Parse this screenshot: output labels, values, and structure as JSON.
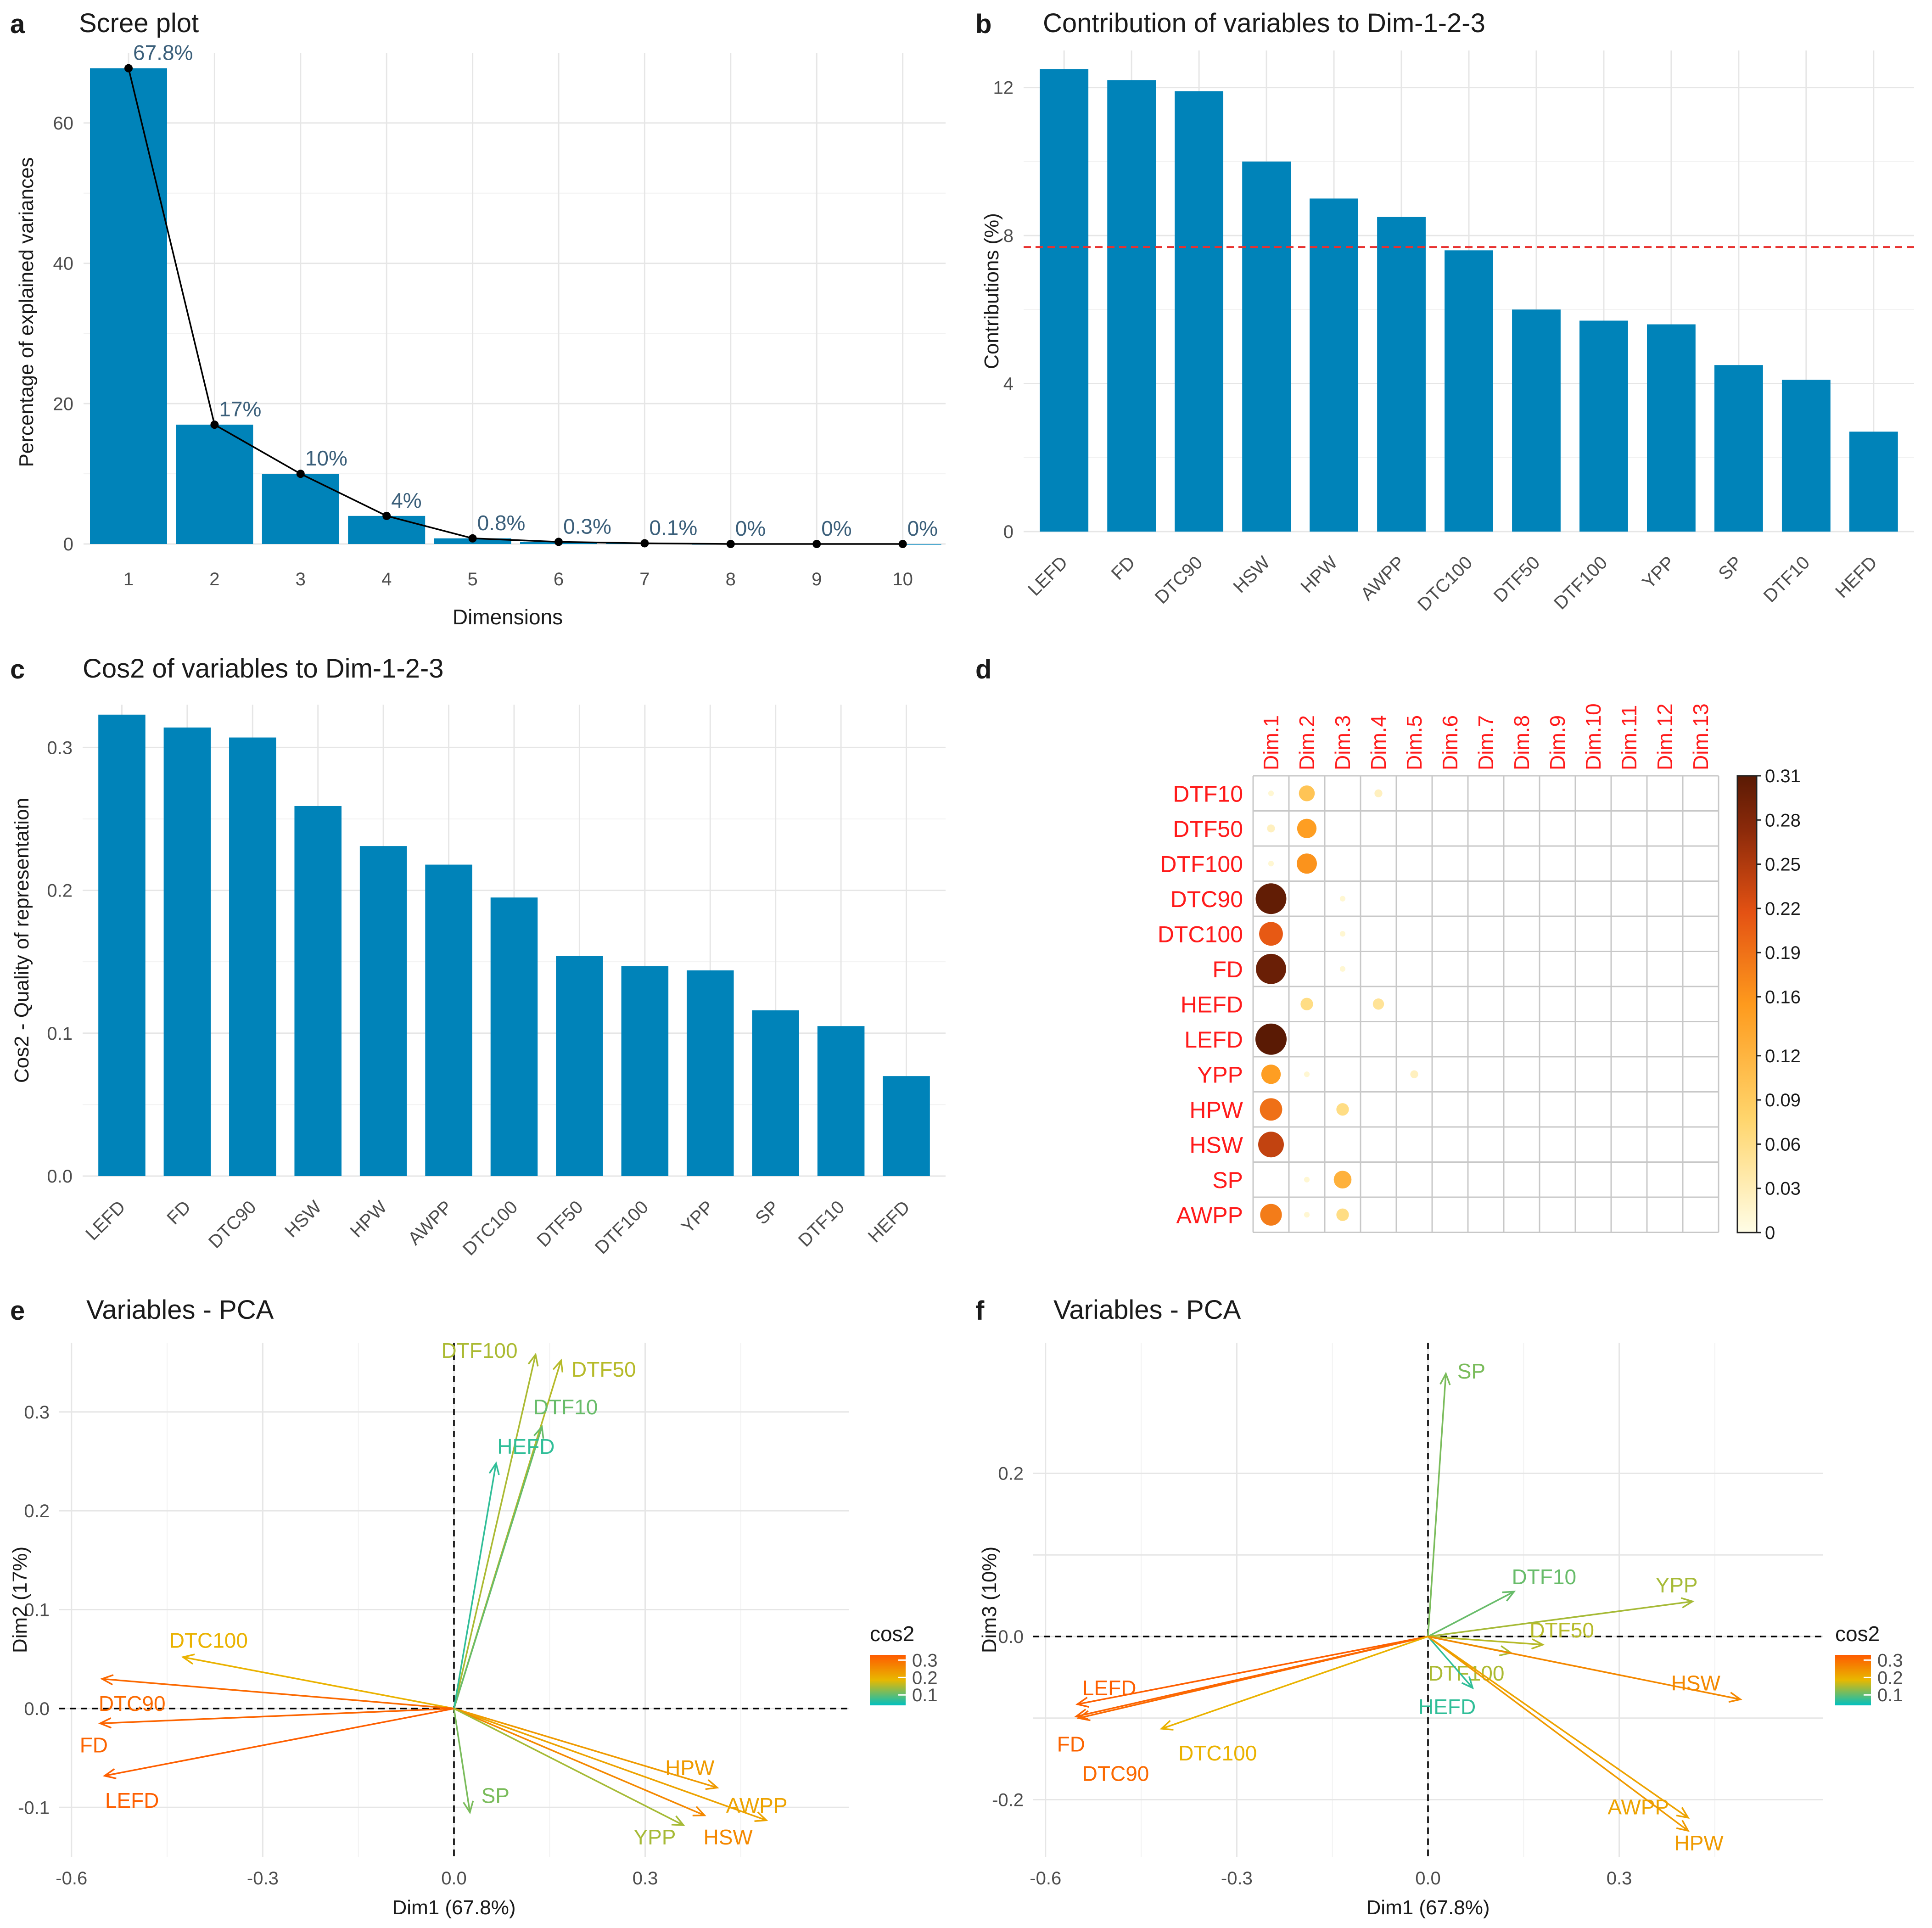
{
  "colors": {
    "bar": "#0083b9",
    "gridline": "#e6e6e6",
    "axis_text": "#4d4d4d",
    "title": "#1a1a1a",
    "red_label": "#ff1a1a",
    "ref_line": "#e8312f",
    "gradient_cos2": [
      "#00c0c0",
      "#e8b800",
      "#ff5a00"
    ],
    "gradient_corr": [
      "#fffde6",
      "#ffd56c",
      "#fe9a1d",
      "#e45213",
      "#8c2a0a",
      "#5a1a04"
    ]
  },
  "panels": {
    "a": {
      "letter": "a",
      "title": "Scree plot"
    },
    "b": {
      "letter": "b",
      "title": "Contribution of variables to Dim-1-2-3"
    },
    "c": {
      "letter": "c",
      "title": "Cos2 of variables to Dim-1-2-3"
    },
    "d": {
      "letter": "d"
    },
    "e": {
      "letter": "e",
      "title": "Variables - PCA"
    },
    "f": {
      "letter": "f",
      "title": "Variables - PCA"
    }
  },
  "chart_data": [
    {
      "id": "a",
      "type": "bar",
      "title": "Scree plot",
      "xlabel": "Dimensions",
      "ylabel": "Percentage of explained variances",
      "categories": [
        "1",
        "2",
        "3",
        "4",
        "5",
        "6",
        "7",
        "8",
        "9",
        "10"
      ],
      "values": [
        67.8,
        17,
        10,
        4,
        0.8,
        0.3,
        0.1,
        0,
        0,
        0
      ],
      "labels": [
        "67.8%",
        "17%",
        "10%",
        "4%",
        "0.8%",
        "0.3%",
        "0.1%",
        "0%",
        "0%",
        "0%"
      ],
      "line_overlay": true,
      "ylim": [
        0,
        70
      ],
      "yticks": [
        0,
        20,
        40,
        60
      ]
    },
    {
      "id": "b",
      "type": "bar",
      "title": "Contribution of variables to Dim-1-2-3",
      "ylabel": "Contributions (%)",
      "categories": [
        "LEFD",
        "FD",
        "DTC90",
        "HSW",
        "HPW",
        "AWPP",
        "DTC100",
        "DTF50",
        "DTF100",
        "YPP",
        "SP",
        "DTF10",
        "HEFD"
      ],
      "values": [
        12.5,
        12.2,
        11.9,
        10.0,
        9.0,
        8.5,
        7.6,
        6.0,
        5.7,
        5.6,
        4.5,
        4.1,
        2.7
      ],
      "reference_line": 7.69,
      "ylim": [
        0,
        13
      ],
      "yticks": [
        0,
        4,
        8,
        12
      ]
    },
    {
      "id": "c",
      "type": "bar",
      "title": "Cos2 of variables to Dim-1-2-3",
      "ylabel": "Cos2 - Quality of representation",
      "categories": [
        "LEFD",
        "FD",
        "DTC90",
        "HSW",
        "HPW",
        "AWPP",
        "DTC100",
        "DTF50",
        "DTF100",
        "YPP",
        "SP",
        "DTF10",
        "HEFD"
      ],
      "values": [
        0.323,
        0.314,
        0.307,
        0.259,
        0.231,
        0.218,
        0.195,
        0.154,
        0.147,
        0.144,
        0.116,
        0.105,
        0.07
      ],
      "ylim": [
        0,
        0.33
      ],
      "yticks": [
        0.0,
        0.1,
        0.2,
        0.3
      ],
      "ytick_labels": [
        "0.0",
        "0.1",
        "0.2",
        "0.3"
      ]
    },
    {
      "id": "d",
      "type": "heatmap",
      "columns": [
        "Dim.1",
        "Dim.2",
        "Dim.3",
        "Dim.4",
        "Dim.5",
        "Dim.6",
        "Dim.7",
        "Dim.8",
        "Dim.9",
        "Dim.10",
        "Dim.11",
        "Dim.12",
        "Dim.13"
      ],
      "rows": [
        "DTF10",
        "DTF50",
        "DTF100",
        "DTC90",
        "DTC100",
        "FD",
        "HEFD",
        "LEFD",
        "YPP",
        "HPW",
        "HSW",
        "SP",
        "AWPP"
      ],
      "values": [
        [
          0.01,
          0.08,
          0.0,
          0.02,
          0.0,
          0.0,
          0.0,
          0.0,
          0.0,
          0.0,
          0.0,
          0.0,
          0.0
        ],
        [
          0.02,
          0.12,
          0.0,
          0.0,
          0.0,
          0.0,
          0.0,
          0.0,
          0.0,
          0.0,
          0.0,
          0.0,
          0.0
        ],
        [
          0.01,
          0.13,
          0.0,
          0.0,
          0.0,
          0.0,
          0.0,
          0.0,
          0.0,
          0.0,
          0.0,
          0.0,
          0.0
        ],
        [
          0.3,
          0.0,
          0.01,
          0.0,
          0.0,
          0.0,
          0.0,
          0.0,
          0.0,
          0.0,
          0.0,
          0.0,
          0.0
        ],
        [
          0.18,
          0.0,
          0.01,
          0.0,
          0.0,
          0.0,
          0.0,
          0.0,
          0.0,
          0.0,
          0.0,
          0.0,
          0.0
        ],
        [
          0.29,
          0.0,
          0.01,
          0.0,
          0.0,
          0.0,
          0.0,
          0.0,
          0.0,
          0.0,
          0.0,
          0.0,
          0.0
        ],
        [
          0.0,
          0.05,
          0.0,
          0.04,
          0.0,
          0.0,
          0.0,
          0.0,
          0.0,
          0.0,
          0.0,
          0.0,
          0.0
        ],
        [
          0.31,
          0.0,
          0.0,
          0.0,
          0.0,
          0.0,
          0.0,
          0.0,
          0.0,
          0.0,
          0.0,
          0.0,
          0.0
        ],
        [
          0.12,
          0.01,
          0.0,
          0.0,
          0.02,
          0.0,
          0.0,
          0.0,
          0.0,
          0.0,
          0.0,
          0.0,
          0.0
        ],
        [
          0.16,
          0.0,
          0.05,
          0.0,
          0.0,
          0.0,
          0.0,
          0.0,
          0.0,
          0.0,
          0.0,
          0.0,
          0.0
        ],
        [
          0.21,
          0.0,
          0.0,
          0.0,
          0.0,
          0.0,
          0.0,
          0.0,
          0.0,
          0.0,
          0.0,
          0.0,
          0.0
        ],
        [
          0.0,
          0.01,
          0.1,
          0.0,
          0.0,
          0.0,
          0.0,
          0.0,
          0.0,
          0.0,
          0.0,
          0.0,
          0.0
        ],
        [
          0.15,
          0.01,
          0.05,
          0.0,
          0.0,
          0.0,
          0.0,
          0.0,
          0.0,
          0.0,
          0.0,
          0.0,
          0.0
        ]
      ],
      "legend_ticks": [
        0,
        0.03,
        0.06,
        0.09,
        0.12,
        0.16,
        0.19,
        0.22,
        0.25,
        0.28,
        0.31
      ],
      "legend_tick_labels": [
        "0",
        "0.03",
        "0.06",
        "0.09",
        "0.12",
        "0.16",
        "0.19",
        "0.22",
        "0.25",
        "0.28",
        "0.31"
      ],
      "legend_range": [
        0,
        0.31
      ]
    },
    {
      "id": "e",
      "type": "scatter",
      "title": "Variables - PCA",
      "xlabel": "Dim1 (67.8%)",
      "ylabel": "Dim2 (17%)",
      "xlim": [
        -0.62,
        0.62
      ],
      "ylim": [
        -0.15,
        0.37
      ],
      "xticks": [
        -0.6,
        -0.3,
        0.0,
        0.3
      ],
      "xtick_labels": [
        "-0.6",
        "-0.3",
        "0.0",
        "0.3"
      ],
      "yticks": [
        -0.1,
        0.0,
        0.1,
        0.2,
        0.3
      ],
      "ytick_labels": [
        "-0.1",
        "0.0",
        "0.1",
        "0.2",
        "0.3"
      ],
      "legend_title": "cos2",
      "legend_ticks": [
        0.1,
        0.2,
        0.3
      ],
      "legend_tick_labels": [
        "0.1",
        "0.2",
        "0.3"
      ],
      "legend_range": [
        0.04,
        0.33
      ],
      "arrows": [
        {
          "name": "DTF100",
          "x": 0.128,
          "y": 0.358,
          "cos2": 0.147,
          "lx": 0.04,
          "ly": 0.362
        },
        {
          "name": "DTF50",
          "x": 0.168,
          "y": 0.352,
          "cos2": 0.154,
          "lx": 0.235,
          "ly": 0.343
        },
        {
          "name": "DTF10",
          "x": 0.138,
          "y": 0.285,
          "cos2": 0.105,
          "lx": 0.175,
          "ly": 0.305
        },
        {
          "name": "HEFD",
          "x": 0.066,
          "y": 0.248,
          "cos2": 0.07,
          "lx": 0.113,
          "ly": 0.265
        },
        {
          "name": "DTC100",
          "x": -0.425,
          "y": 0.052,
          "cos2": 0.195,
          "lx": -0.385,
          "ly": 0.069
        },
        {
          "name": "DTC90",
          "x": -0.552,
          "y": 0.03,
          "cos2": 0.307,
          "lx": -0.505,
          "ly": 0.005
        },
        {
          "name": "FD",
          "x": -0.555,
          "y": -0.015,
          "cos2": 0.314,
          "lx": -0.565,
          "ly": -0.037
        },
        {
          "name": "LEFD",
          "x": -0.548,
          "y": -0.068,
          "cos2": 0.323,
          "lx": -0.505,
          "ly": -0.093
        },
        {
          "name": "SP",
          "x": 0.025,
          "y": -0.105,
          "cos2": 0.116,
          "lx": 0.065,
          "ly": -0.088
        },
        {
          "name": "HPW",
          "x": 0.413,
          "y": -0.08,
          "cos2": 0.231,
          "lx": 0.37,
          "ly": -0.06
        },
        {
          "name": "AWPP",
          "x": 0.49,
          "y": -0.113,
          "cos2": 0.218,
          "lx": 0.475,
          "ly": -0.098
        },
        {
          "name": "HSW",
          "x": 0.393,
          "y": -0.108,
          "cos2": 0.259,
          "lx": 0.43,
          "ly": -0.13
        },
        {
          "name": "YPP",
          "x": 0.36,
          "y": -0.118,
          "cos2": 0.144,
          "lx": 0.315,
          "ly": -0.13
        }
      ]
    },
    {
      "id": "f",
      "type": "scatter",
      "title": "Variables - PCA",
      "xlabel": "Dim1 (67.8%)",
      "ylabel": "Dim3 (10%)",
      "xlim": [
        -0.62,
        0.62
      ],
      "ylim": [
        -0.27,
        0.36
      ],
      "xticks": [
        -0.6,
        -0.3,
        0.0,
        0.3
      ],
      "xtick_labels": [
        "-0.6",
        "-0.3",
        "0.0",
        "0.3"
      ],
      "yticks": [
        -0.2,
        -0.1,
        0.0,
        0.1,
        0.2
      ],
      "ytick_labels": [
        "-0.2",
        "",
        "0.0",
        "",
        "0.2"
      ],
      "legend_title": "cos2",
      "legend_ticks": [
        0.1,
        0.2,
        0.3
      ],
      "legend_tick_labels": [
        "0.1",
        "0.2",
        "0.3"
      ],
      "legend_range": [
        0.04,
        0.33
      ],
      "arrows": [
        {
          "name": "SP",
          "x": 0.028,
          "y": 0.322,
          "cos2": 0.116,
          "lx": 0.068,
          "ly": 0.325
        },
        {
          "name": "DTF10",
          "x": 0.135,
          "y": 0.055,
          "cos2": 0.105,
          "lx": 0.182,
          "ly": 0.073
        },
        {
          "name": "YPP",
          "x": 0.415,
          "y": 0.043,
          "cos2": 0.144,
          "lx": 0.39,
          "ly": 0.063
        },
        {
          "name": "DTF50",
          "x": 0.18,
          "y": -0.01,
          "cos2": 0.154,
          "lx": 0.21,
          "ly": 0.008
        },
        {
          "name": "DTF100",
          "x": 0.13,
          "y": -0.02,
          "cos2": 0.147,
          "lx": 0.06,
          "ly": -0.045
        },
        {
          "name": "HEFD",
          "x": 0.07,
          "y": -0.063,
          "cos2": 0.07,
          "lx": 0.03,
          "ly": -0.086
        },
        {
          "name": "HSW",
          "x": 0.49,
          "y": -0.077,
          "cos2": 0.259,
          "lx": 0.42,
          "ly": -0.057
        },
        {
          "name": "AWPP",
          "x": 0.408,
          "y": -0.222,
          "cos2": 0.218,
          "lx": 0.33,
          "ly": -0.209
        },
        {
          "name": "HPW",
          "x": 0.408,
          "y": -0.238,
          "cos2": 0.231,
          "lx": 0.425,
          "ly": -0.253
        },
        {
          "name": "LEFD",
          "x": -0.55,
          "y": -0.083,
          "cos2": 0.323,
          "lx": -0.5,
          "ly": -0.063
        },
        {
          "name": "FD",
          "x": -0.552,
          "y": -0.098,
          "cos2": 0.314,
          "lx": -0.56,
          "ly": -0.132
        },
        {
          "name": "DTC90",
          "x": -0.548,
          "y": -0.1,
          "cos2": 0.307,
          "lx": -0.49,
          "ly": -0.168
        },
        {
          "name": "DTC100",
          "x": -0.418,
          "y": -0.113,
          "cos2": 0.195,
          "lx": -0.33,
          "ly": -0.143
        }
      ]
    }
  ]
}
